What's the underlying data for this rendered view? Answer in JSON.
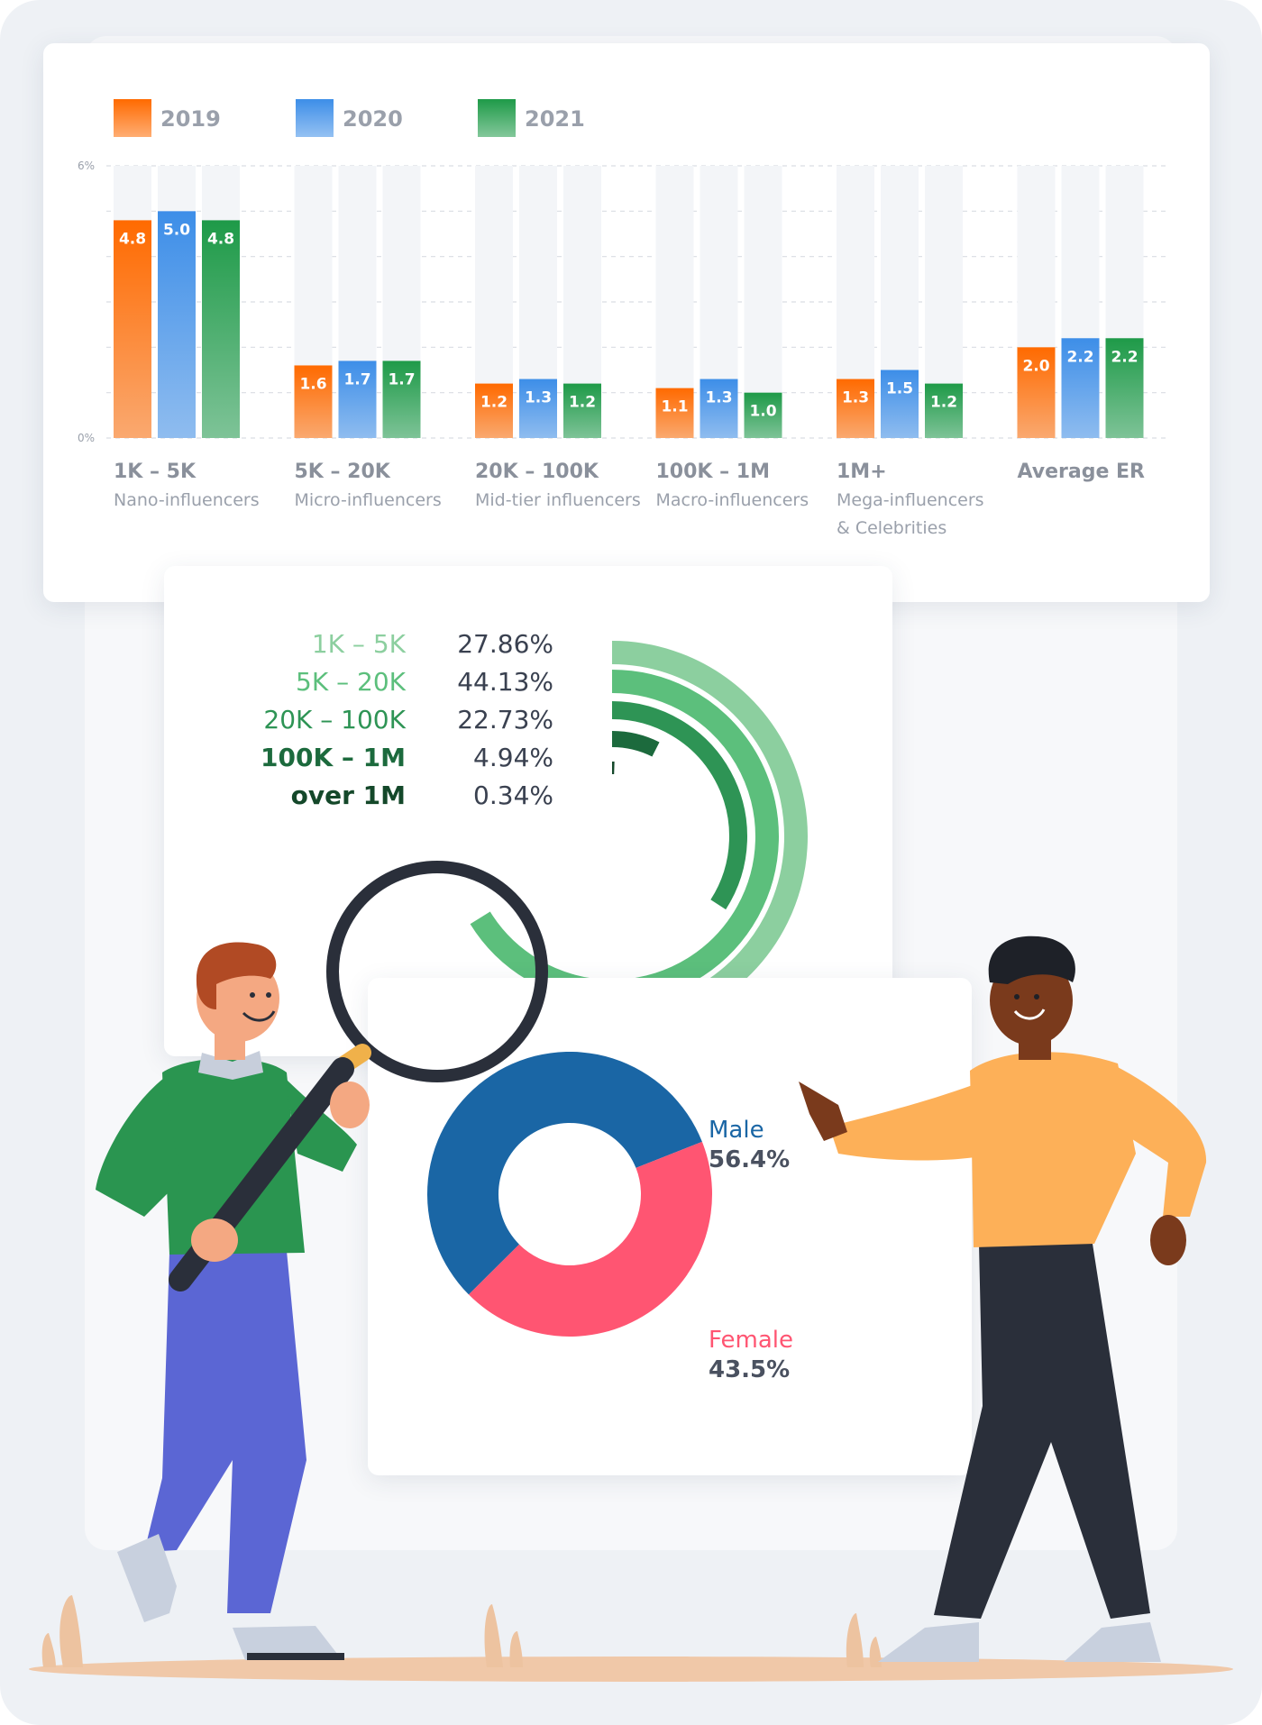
{
  "colors": {
    "y2019": "#ff6a00",
    "y2020": "#3d8ee8",
    "y2021": "#1e9a48",
    "male": "#1a66a5",
    "female": "#ff5572"
  },
  "chart_data": [
    {
      "type": "bar",
      "title": "",
      "xlabel": "",
      "ylabel": "",
      "ylim": [
        0,
        6
      ],
      "yticks": [
        "0%",
        "6%"
      ],
      "grid": true,
      "legend": "top-left",
      "categories": [
        {
          "title": "1K – 5K",
          "subtitle": [
            "Nano-influencers"
          ]
        },
        {
          "title": "5K – 20K",
          "subtitle": [
            "Micro-influencers"
          ]
        },
        {
          "title": "20K – 100K",
          "subtitle": [
            "Mid-tier influencers"
          ]
        },
        {
          "title": "100K – 1M",
          "subtitle": [
            "Macro-influencers"
          ]
        },
        {
          "title": "1M+",
          "subtitle": [
            "Mega-influencers",
            "& Celebrities"
          ]
        },
        {
          "title": "Average ER",
          "subtitle": []
        }
      ],
      "series": [
        {
          "name": "2019",
          "color": "#ff6a00",
          "values": [
            4.8,
            1.6,
            1.2,
            1.1,
            1.3,
            2.0
          ],
          "labels": [
            "4.8",
            "1.6",
            "1.2",
            "1.1",
            "1.3",
            "2.0"
          ]
        },
        {
          "name": "2020",
          "color": "#3d8ee8",
          "values": [
            5.0,
            1.7,
            1.3,
            1.3,
            1.5,
            2.2
          ],
          "labels": [
            "5.0",
            "1.7",
            "1.3",
            "1.3",
            "1.5",
            "2.2"
          ]
        },
        {
          "name": "2021",
          "color": "#1e9a48",
          "values": [
            4.8,
            1.7,
            1.2,
            1.0,
            1.2,
            2.2
          ],
          "labels": [
            "4.8",
            "1.7",
            "1.2",
            "1.0",
            "1.2",
            "2.2"
          ]
        }
      ]
    },
    {
      "type": "radial-bar",
      "title": "",
      "max": 50,
      "series": [
        {
          "name": "1K – 5K",
          "value": 27.86,
          "label": "27.86%",
          "color": "#8ccf9f"
        },
        {
          "name": "5K – 20K",
          "value": 44.13,
          "label": "44.13%",
          "color": "#5cbf7c"
        },
        {
          "name": "20K – 100K",
          "value": 22.73,
          "label": "22.73%",
          "color": "#2e9455"
        },
        {
          "name": "100K – 1M",
          "value": 4.94,
          "label": "4.94%",
          "color": "#1c6a3d"
        },
        {
          "name": "over 1M",
          "value": 0.34,
          "label": "0.34%",
          "color": "#14482a"
        }
      ]
    },
    {
      "type": "pie",
      "title": "",
      "donut": true,
      "series": [
        {
          "name": "Male",
          "value": 56.4,
          "label": "56.4%",
          "color": "#1a66a5"
        },
        {
          "name": "Female",
          "value": 43.5,
          "label": "43.5%",
          "color": "#ff5572"
        }
      ]
    }
  ],
  "illustration": {
    "icons": [
      "magnifier-icon",
      "person-with-magnifier",
      "person-pointing",
      "grass-icon"
    ]
  }
}
